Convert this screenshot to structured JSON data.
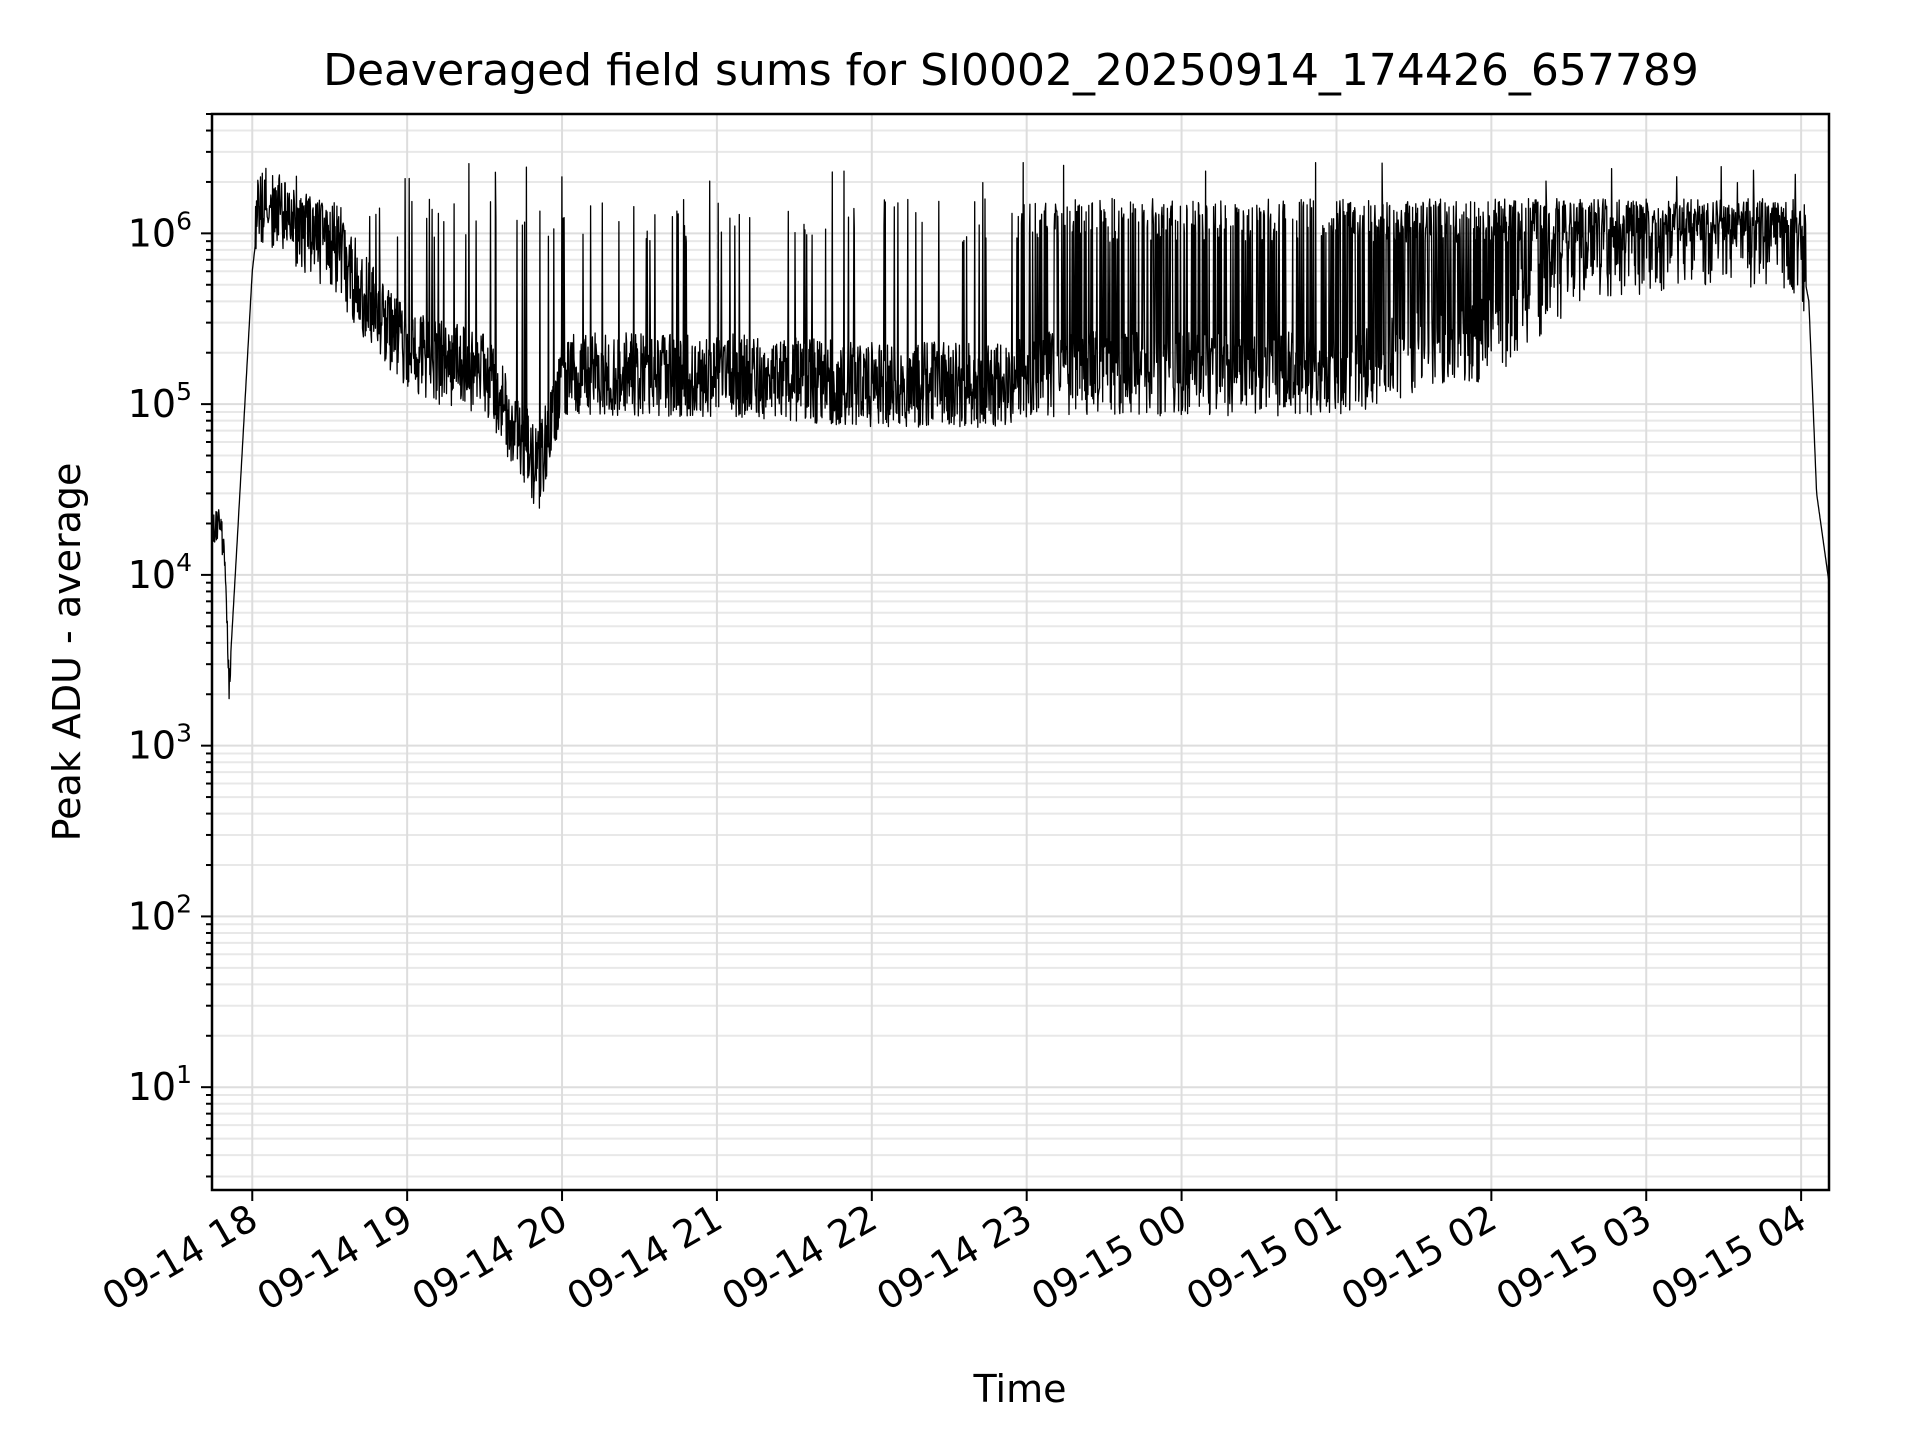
{
  "chart_data": {
    "type": "line",
    "title": "Deaveraged field sums for SI0002_20250914_174426_657789",
    "xlabel": "Time",
    "ylabel": "Peak ADU - average",
    "yscale": "log",
    "ylim": [
      2.5,
      5000000
    ],
    "xlim_hours": [
      -0.26,
      10.18
    ],
    "grid": "on (major and minor)",
    "x_ticks": [
      {
        "label": "09-14 18",
        "hour": 0
      },
      {
        "label": "09-14 19",
        "hour": 1
      },
      {
        "label": "09-14 20",
        "hour": 2
      },
      {
        "label": "09-14 21",
        "hour": 3
      },
      {
        "label": "09-14 22",
        "hour": 4
      },
      {
        "label": "09-14 23",
        "hour": 5
      },
      {
        "label": "09-15 00",
        "hour": 6
      },
      {
        "label": "09-15 01",
        "hour": 7
      },
      {
        "label": "09-15 02",
        "hour": 8
      },
      {
        "label": "09-15 03",
        "hour": 9
      },
      {
        "label": "09-15 04",
        "hour": 10
      }
    ],
    "y_ticks": [
      {
        "base": "10",
        "exp": "1",
        "value": 10
      },
      {
        "base": "10",
        "exp": "2",
        "value": 100
      },
      {
        "base": "10",
        "exp": "3",
        "value": 1000
      },
      {
        "base": "10",
        "exp": "4",
        "value": 10000
      },
      {
        "base": "10",
        "exp": "5",
        "value": 100000
      },
      {
        "base": "10",
        "exp": "6",
        "value": 1000000
      }
    ],
    "series": [
      {
        "name": "Peak ADU - average",
        "color": "#000000",
        "anchor_points_hours_value": [
          [
            -0.26,
            18000
          ],
          [
            -0.22,
            20000
          ],
          [
            -0.18,
            15000
          ],
          [
            -0.15,
            2300
          ],
          [
            -0.08,
            30000
          ],
          [
            0.0,
            600000
          ],
          [
            0.05,
            1500000
          ],
          [
            0.5,
            800000
          ],
          [
            1.0,
            200000
          ],
          [
            1.5,
            150000
          ],
          [
            1.75,
            60000
          ],
          [
            1.85,
            40000
          ],
          [
            2.0,
            150000
          ],
          [
            3.0,
            150000
          ],
          [
            4.0,
            130000
          ],
          [
            4.9,
            130000
          ],
          [
            5.0,
            150000
          ],
          [
            6.0,
            150000
          ],
          [
            7.0,
            150000
          ],
          [
            8.0,
            250000
          ],
          [
            8.5,
            600000
          ],
          [
            9.0,
            800000
          ],
          [
            9.5,
            900000
          ],
          [
            9.95,
            800000
          ],
          [
            10.0,
            700000
          ],
          [
            10.05,
            400000
          ],
          [
            10.1,
            30000
          ],
          [
            10.18,
            9000
          ]
        ],
        "typical_spike_max": 1600000,
        "max_value": 2600000,
        "min_value": 2300
      }
    ]
  }
}
